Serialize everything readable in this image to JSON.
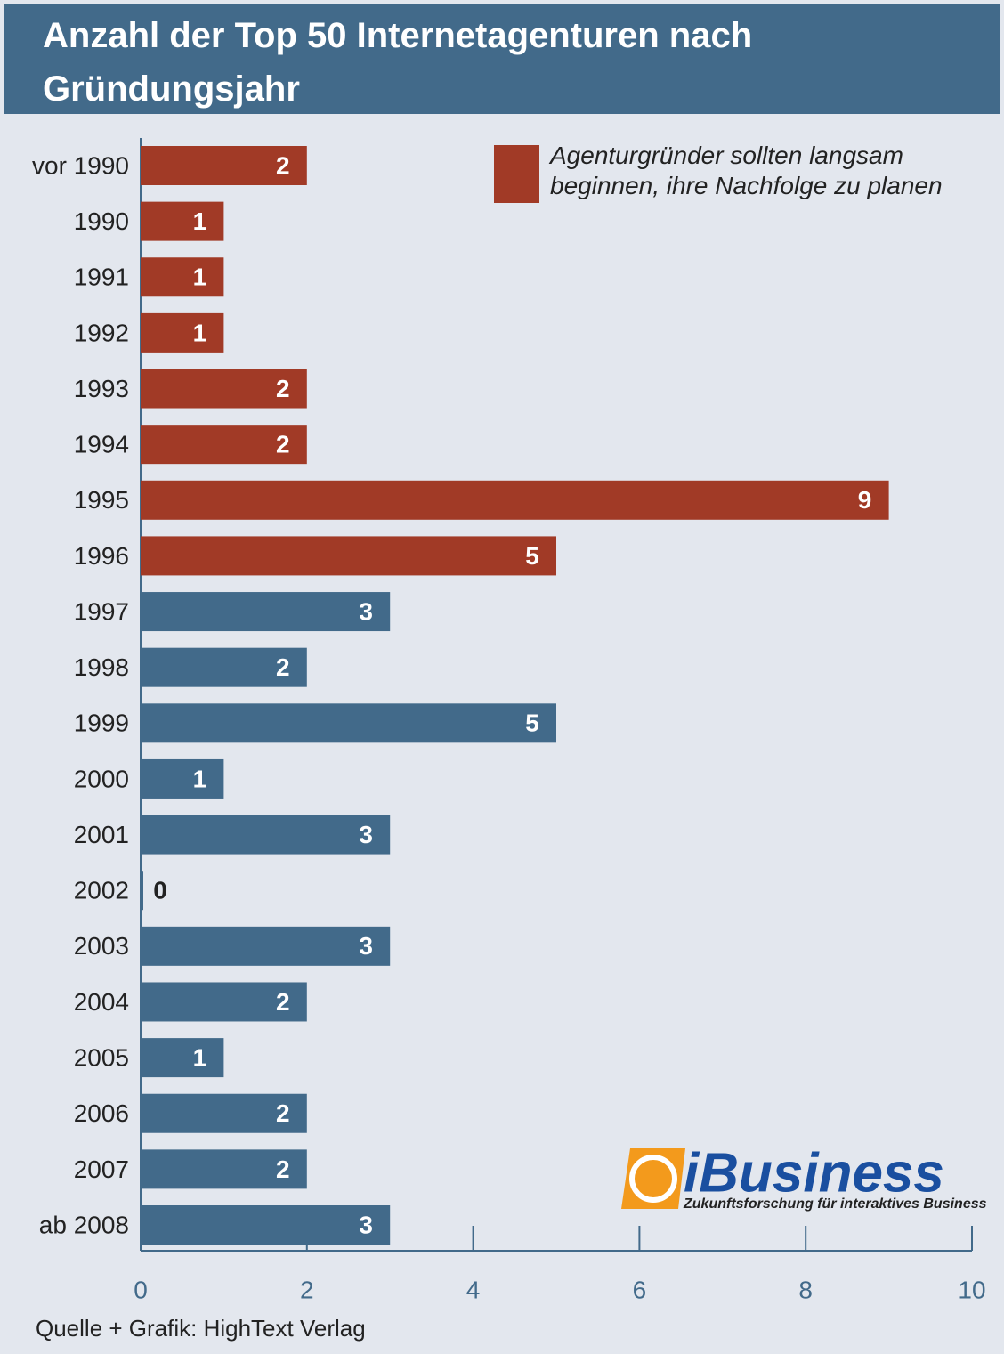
{
  "chart_data": {
    "type": "hbar",
    "title": "Anzahl der Top 50 Internetagenturen nach Gründungsjahr",
    "categories": [
      "vor 1990",
      "1990",
      "1991",
      "1992",
      "1993",
      "1994",
      "1995",
      "1996",
      "1997",
      "1998",
      "1999",
      "2000",
      "2001",
      "2002",
      "2003",
      "2004",
      "2005",
      "2006",
      "2007",
      "ab 2008"
    ],
    "values": [
      2,
      1,
      1,
      1,
      2,
      2,
      9,
      5,
      3,
      2,
      5,
      1,
      3,
      0,
      3,
      2,
      1,
      2,
      2,
      3
    ],
    "colors": [
      "#a13a26",
      "#a13a26",
      "#a13a26",
      "#a13a26",
      "#a13a26",
      "#a13a26",
      "#a13a26",
      "#a13a26",
      "#426a8a",
      "#426a8a",
      "#426a8a",
      "#426a8a",
      "#426a8a",
      "#426a8a",
      "#426a8a",
      "#426a8a",
      "#426a8a",
      "#426a8a",
      "#426a8a",
      "#426a8a"
    ],
    "xlim": [
      0,
      10
    ],
    "xticks": [
      0,
      2,
      4,
      6,
      8,
      10
    ],
    "legend": {
      "label": "Agenturgründer sollten langsam beginnen, ihre Nachfolge zu planen",
      "color": "#a13a26"
    },
    "source": "Quelle + Grafik: HighText Verlag",
    "logo": {
      "name": "iBusiness",
      "tagline": "Zukunftsforschung für interaktives Business"
    }
  }
}
